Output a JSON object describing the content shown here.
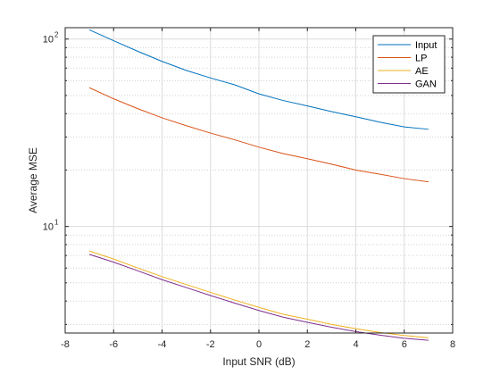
{
  "chart_data": {
    "type": "line",
    "xlabel": "Input SNR (dB)",
    "ylabel": "Average MSE",
    "xlim": [
      -8,
      8
    ],
    "ylim": [
      2.7,
      115
    ],
    "yscale": "log",
    "grid": true,
    "legend_position": "top-right",
    "x_ticks": [
      -8,
      -6,
      -4,
      -2,
      0,
      2,
      4,
      6,
      8
    ],
    "x_tick_labels": [
      "-8",
      "-6",
      "-4",
      "-2",
      "0",
      "2",
      "4",
      "6",
      "8"
    ],
    "y_tick_labels": [
      {
        "value": 10,
        "base": "10",
        "exp": "1"
      },
      {
        "value": 100,
        "base": "10",
        "exp": "2"
      }
    ],
    "x": [
      -7,
      -6,
      -5,
      -4,
      -3,
      -2,
      -1,
      0,
      1,
      2,
      3,
      4,
      5,
      6,
      7
    ],
    "series": [
      {
        "name": "Input",
        "color": "#0072BD",
        "values": [
          112,
          98,
          86,
          76,
          68,
          62,
          57,
          51,
          47,
          44,
          41,
          38.5,
          36,
          34,
          33
        ]
      },
      {
        "name": "LP",
        "color": "#D95319",
        "values": [
          55,
          48,
          42.5,
          38,
          34.5,
          31.5,
          29,
          26.5,
          24.5,
          23,
          21.5,
          20,
          19,
          18,
          17.3
        ]
      },
      {
        "name": "AE",
        "color": "#EDB120",
        "values": [
          7.4,
          6.7,
          6.0,
          5.4,
          4.9,
          4.45,
          4.05,
          3.7,
          3.4,
          3.2,
          3.0,
          2.85,
          2.72,
          2.62,
          2.55
        ]
      },
      {
        "name": "GAN",
        "color": "#7E2F8E",
        "values": [
          7.1,
          6.45,
          5.8,
          5.2,
          4.72,
          4.28,
          3.9,
          3.56,
          3.28,
          3.08,
          2.9,
          2.75,
          2.63,
          2.53,
          2.47
        ]
      }
    ]
  }
}
